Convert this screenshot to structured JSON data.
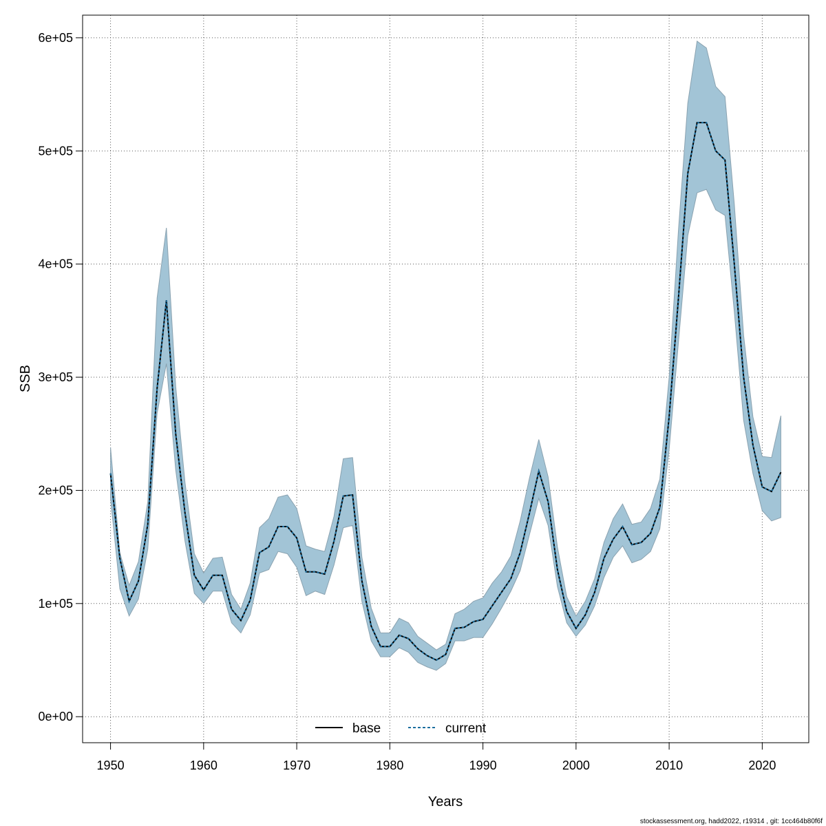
{
  "chart_data": {
    "type": "area",
    "title": "",
    "xlabel": "Years",
    "ylabel": "SSB",
    "xlim": [
      1947,
      2025
    ],
    "ylim": [
      -23000,
      620000
    ],
    "x_ticks": [
      1950,
      1960,
      1970,
      1980,
      1990,
      2000,
      2010,
      2020
    ],
    "x_tick_labels": [
      "1950",
      "1960",
      "1970",
      "1980",
      "1990",
      "2000",
      "2010",
      "2020"
    ],
    "y_ticks": [
      0,
      100000,
      200000,
      300000,
      400000,
      500000,
      600000
    ],
    "y_tick_labels": [
      "0e+00",
      "1e+05",
      "2e+05",
      "3e+05",
      "4e+05",
      "5e+05",
      "6e+05"
    ],
    "grid": true,
    "legend": {
      "position": "bottom-center",
      "entries": [
        {
          "label": "base",
          "color": "#000000",
          "linestyle": "solid"
        },
        {
          "label": "current",
          "color": "#1a6e9e",
          "linestyle": "dashed"
        }
      ]
    },
    "x": [
      1950,
      1951,
      1952,
      1953,
      1954,
      1955,
      1956,
      1957,
      1958,
      1959,
      1960,
      1961,
      1962,
      1963,
      1964,
      1965,
      1966,
      1967,
      1968,
      1969,
      1970,
      1971,
      1972,
      1973,
      1974,
      1975,
      1976,
      1977,
      1978,
      1979,
      1980,
      1981,
      1982,
      1983,
      1984,
      1985,
      1986,
      1987,
      1988,
      1989,
      1990,
      1991,
      1992,
      1993,
      1994,
      1995,
      1996,
      1997,
      1998,
      1999,
      2000,
      2001,
      2002,
      2003,
      2004,
      2005,
      2006,
      2007,
      2008,
      2009,
      2010,
      2011,
      2012,
      2013,
      2014,
      2015,
      2016,
      2017,
      2018,
      2019,
      2020,
      2021,
      2022
    ],
    "series": [
      {
        "name": "base",
        "color": "#000000",
        "values": [
          215000,
          140000,
          102000,
          120000,
          170000,
          290000,
          368000,
          250000,
          180000,
          125000,
          112000,
          125000,
          125000,
          95000,
          85000,
          103000,
          145000,
          150000,
          168000,
          168000,
          158000,
          128000,
          128000,
          126000,
          155000,
          195000,
          196000,
          120000,
          80000,
          62000,
          62000,
          72000,
          69000,
          60000,
          54000,
          50000,
          55000,
          78000,
          79000,
          84000,
          86000,
          98000,
          110000,
          122000,
          145000,
          180000,
          217000,
          190000,
          130000,
          93000,
          78000,
          90000,
          110000,
          140000,
          157000,
          168000,
          152000,
          154000,
          162000,
          185000,
          265000,
          370000,
          480000,
          525000,
          525000,
          500000,
          492000,
          400000,
          300000,
          240000,
          203000,
          199000,
          216000
        ]
      },
      {
        "name": "current",
        "color": "#1a6e9e",
        "values": [
          215000,
          140000,
          102000,
          120000,
          170000,
          290000,
          368000,
          250000,
          180000,
          125000,
          112000,
          125000,
          125000,
          95000,
          85000,
          103000,
          145000,
          150000,
          168000,
          168000,
          158000,
          128000,
          128000,
          126000,
          155000,
          195000,
          196000,
          120000,
          80000,
          62000,
          62000,
          72000,
          69000,
          60000,
          54000,
          50000,
          55000,
          78000,
          79000,
          84000,
          86000,
          98000,
          110000,
          122000,
          145000,
          180000,
          217000,
          190000,
          130000,
          93000,
          78000,
          90000,
          110000,
          140000,
          157000,
          168000,
          152000,
          154000,
          162000,
          185000,
          265000,
          370000,
          480000,
          525000,
          525000,
          500000,
          492000,
          400000,
          300000,
          240000,
          203000,
          199000,
          216000
        ]
      }
    ],
    "band": {
      "color": "#a2c4d6",
      "edge_color": "#8aa2b0",
      "lower": [
        193000,
        113000,
        89000,
        104000,
        148000,
        268000,
        312000,
        218000,
        155000,
        109000,
        100000,
        111000,
        111000,
        83000,
        74000,
        90000,
        127000,
        130000,
        146000,
        144000,
        132000,
        107000,
        111000,
        108000,
        134000,
        167000,
        169000,
        102000,
        67000,
        53000,
        53000,
        61000,
        57000,
        48000,
        44000,
        41000,
        47000,
        67000,
        67000,
        70000,
        70000,
        82000,
        96000,
        111000,
        129000,
        161000,
        193000,
        169000,
        115000,
        83000,
        71000,
        81000,
        98000,
        123000,
        141000,
        151000,
        136000,
        139000,
        146000,
        166000,
        236000,
        331000,
        425000,
        463000,
        466000,
        448000,
        443000,
        358000,
        262000,
        215000,
        182000,
        173000,
        176000
      ],
      "upper": [
        238000,
        145000,
        116000,
        137000,
        190000,
        370000,
        432000,
        292000,
        207000,
        144000,
        127000,
        140000,
        141000,
        108000,
        95000,
        118000,
        167000,
        175000,
        194000,
        196000,
        184000,
        151000,
        148000,
        146000,
        177000,
        228000,
        229000,
        141000,
        96000,
        74000,
        74000,
        87000,
        83000,
        71000,
        65000,
        59000,
        64000,
        91000,
        95000,
        102000,
        105000,
        118000,
        128000,
        142000,
        173000,
        211000,
        245000,
        212000,
        150000,
        106000,
        89000,
        102000,
        122000,
        154000,
        175000,
        188000,
        170000,
        172000,
        184000,
        210000,
        300000,
        430000,
        542000,
        597000,
        591000,
        557000,
        548000,
        453000,
        337000,
        265000,
        230000,
        229000,
        266000
      ]
    },
    "footnote": "stockassessment.org, hadd2022, r19314 , git: 1cc464b80f6f"
  }
}
